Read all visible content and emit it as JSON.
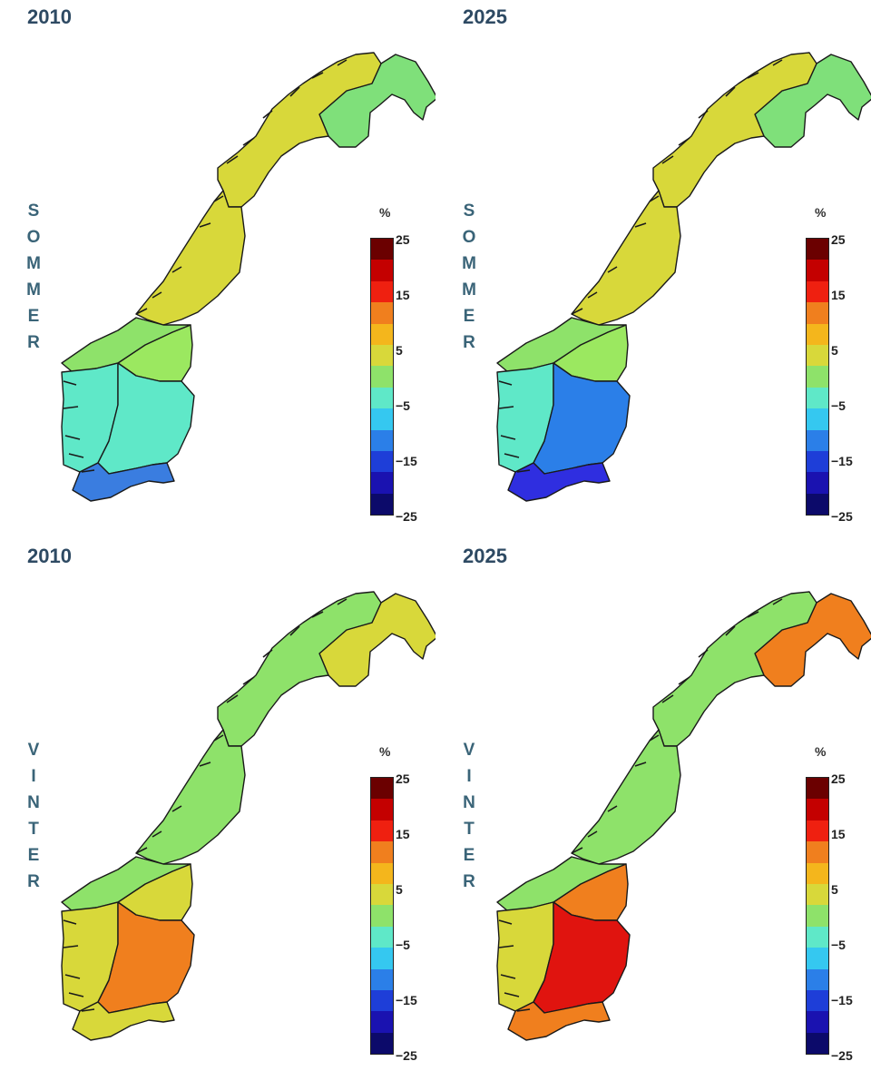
{
  "panels": [
    {
      "year": "2010",
      "season": "SOMMER",
      "colors": {
        "finnmark": "#7fe07a",
        "north": "#d8d83a",
        "trondelag": "#d8d83a",
        "mid": "#9be860",
        "westnorth": "#8ee26a",
        "westsouth": "#5fe8c8",
        "east": "#5fe8c8",
        "south": "#3a7de0"
      }
    },
    {
      "year": "2025",
      "season": "SOMMER",
      "colors": {
        "finnmark": "#7fe07a",
        "north": "#d8d83a",
        "trondelag": "#d8d83a",
        "mid": "#9be860",
        "westnorth": "#8ee26a",
        "westsouth": "#5fe8c8",
        "east": "#2b7fe8",
        "south": "#2f2ee0"
      }
    },
    {
      "year": "2010",
      "season": "VINTER",
      "colors": {
        "finnmark": "#d8d83a",
        "north": "#8ee26a",
        "trondelag": "#8ee26a",
        "mid": "#d8d83a",
        "westnorth": "#8ee26a",
        "westsouth": "#d8d83a",
        "east": "#f07f1e",
        "south": "#d8d83a"
      }
    },
    {
      "year": "2025",
      "season": "VINTER",
      "colors": {
        "finnmark": "#f07f1e",
        "north": "#8ee26a",
        "trondelag": "#8ee26a",
        "mid": "#f07f1e",
        "westnorth": "#8ee26a",
        "westsouth": "#d8d83a",
        "east": "#e0140f",
        "south": "#f07f1e"
      }
    }
  ],
  "legend": {
    "unit": "%",
    "ticks": [
      "25",
      "15",
      "5",
      "−5",
      "−15",
      "−25"
    ],
    "colors": [
      "#6b0000",
      "#c40000",
      "#ef2010",
      "#f07f1e",
      "#f4b61c",
      "#d8d83a",
      "#8ee26a",
      "#5fe8c8",
      "#35c8f0",
      "#2b7fe8",
      "#1e3ed8",
      "#1a12b0",
      "#0c0a6a"
    ]
  }
}
